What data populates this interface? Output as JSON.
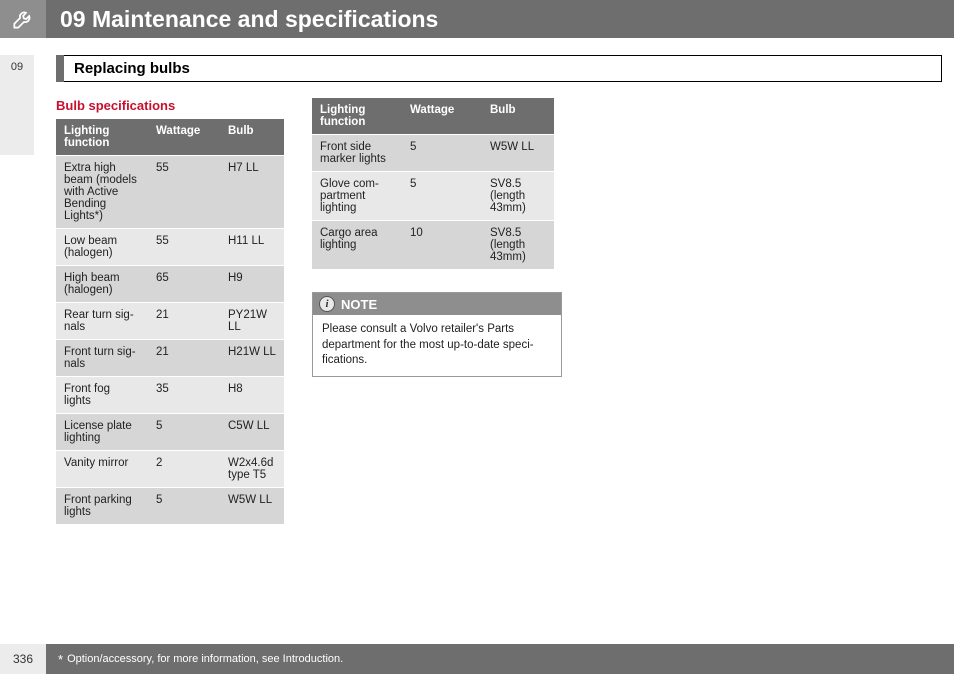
{
  "header": {
    "chapter_title": "09 Maintenance and specifications",
    "sidebar_num": "09"
  },
  "section": {
    "title": "Replacing bulbs",
    "subheading": "Bulb specifications"
  },
  "table1": {
    "columns": [
      "Lighting function",
      "Wattage",
      "Bulb"
    ],
    "rows": [
      [
        "Extra high beam (models with Active Bending Lights*)",
        "55",
        "H7 LL"
      ],
      [
        "Low beam (halogen)",
        "55",
        "H11 LL"
      ],
      [
        "High beam (halogen)",
        "65",
        "H9"
      ],
      [
        "Rear turn sig-nals",
        "21",
        "PY21W LL"
      ],
      [
        "Front turn sig-nals",
        "21",
        "H21W LL"
      ],
      [
        "Front fog lights",
        "35",
        "H8"
      ],
      [
        "License plate lighting",
        "5",
        "C5W LL"
      ],
      [
        "Vanity mirror",
        "2",
        "W2x4.6d type T5"
      ],
      [
        "Front parking lights",
        "5",
        "W5W LL"
      ]
    ]
  },
  "table2": {
    "columns": [
      "Lighting function",
      "Wattage",
      "Bulb"
    ],
    "rows": [
      [
        "Front side marker lights",
        "5",
        "W5W LL"
      ],
      [
        "Glove com-partment lighting",
        "5",
        "SV8.5 (length 43mm)"
      ],
      [
        "Cargo area lighting",
        "10",
        "SV8.5 (length 43mm)"
      ]
    ]
  },
  "note": {
    "label": "NOTE",
    "body": "Please consult a Volvo retailer's Parts department for the most up-to-date speci-fications."
  },
  "footer": {
    "page": "336",
    "text": "Option/accessory, for more information, see Introduction."
  },
  "colors": {
    "header_bg": "#6e6e6e",
    "header_icon_bg": "#8e8e8e",
    "accent_red": "#c7102e",
    "row_odd": "#d6d6d6",
    "row_even": "#e8e8e8",
    "sidebar_bg": "#ececec"
  }
}
